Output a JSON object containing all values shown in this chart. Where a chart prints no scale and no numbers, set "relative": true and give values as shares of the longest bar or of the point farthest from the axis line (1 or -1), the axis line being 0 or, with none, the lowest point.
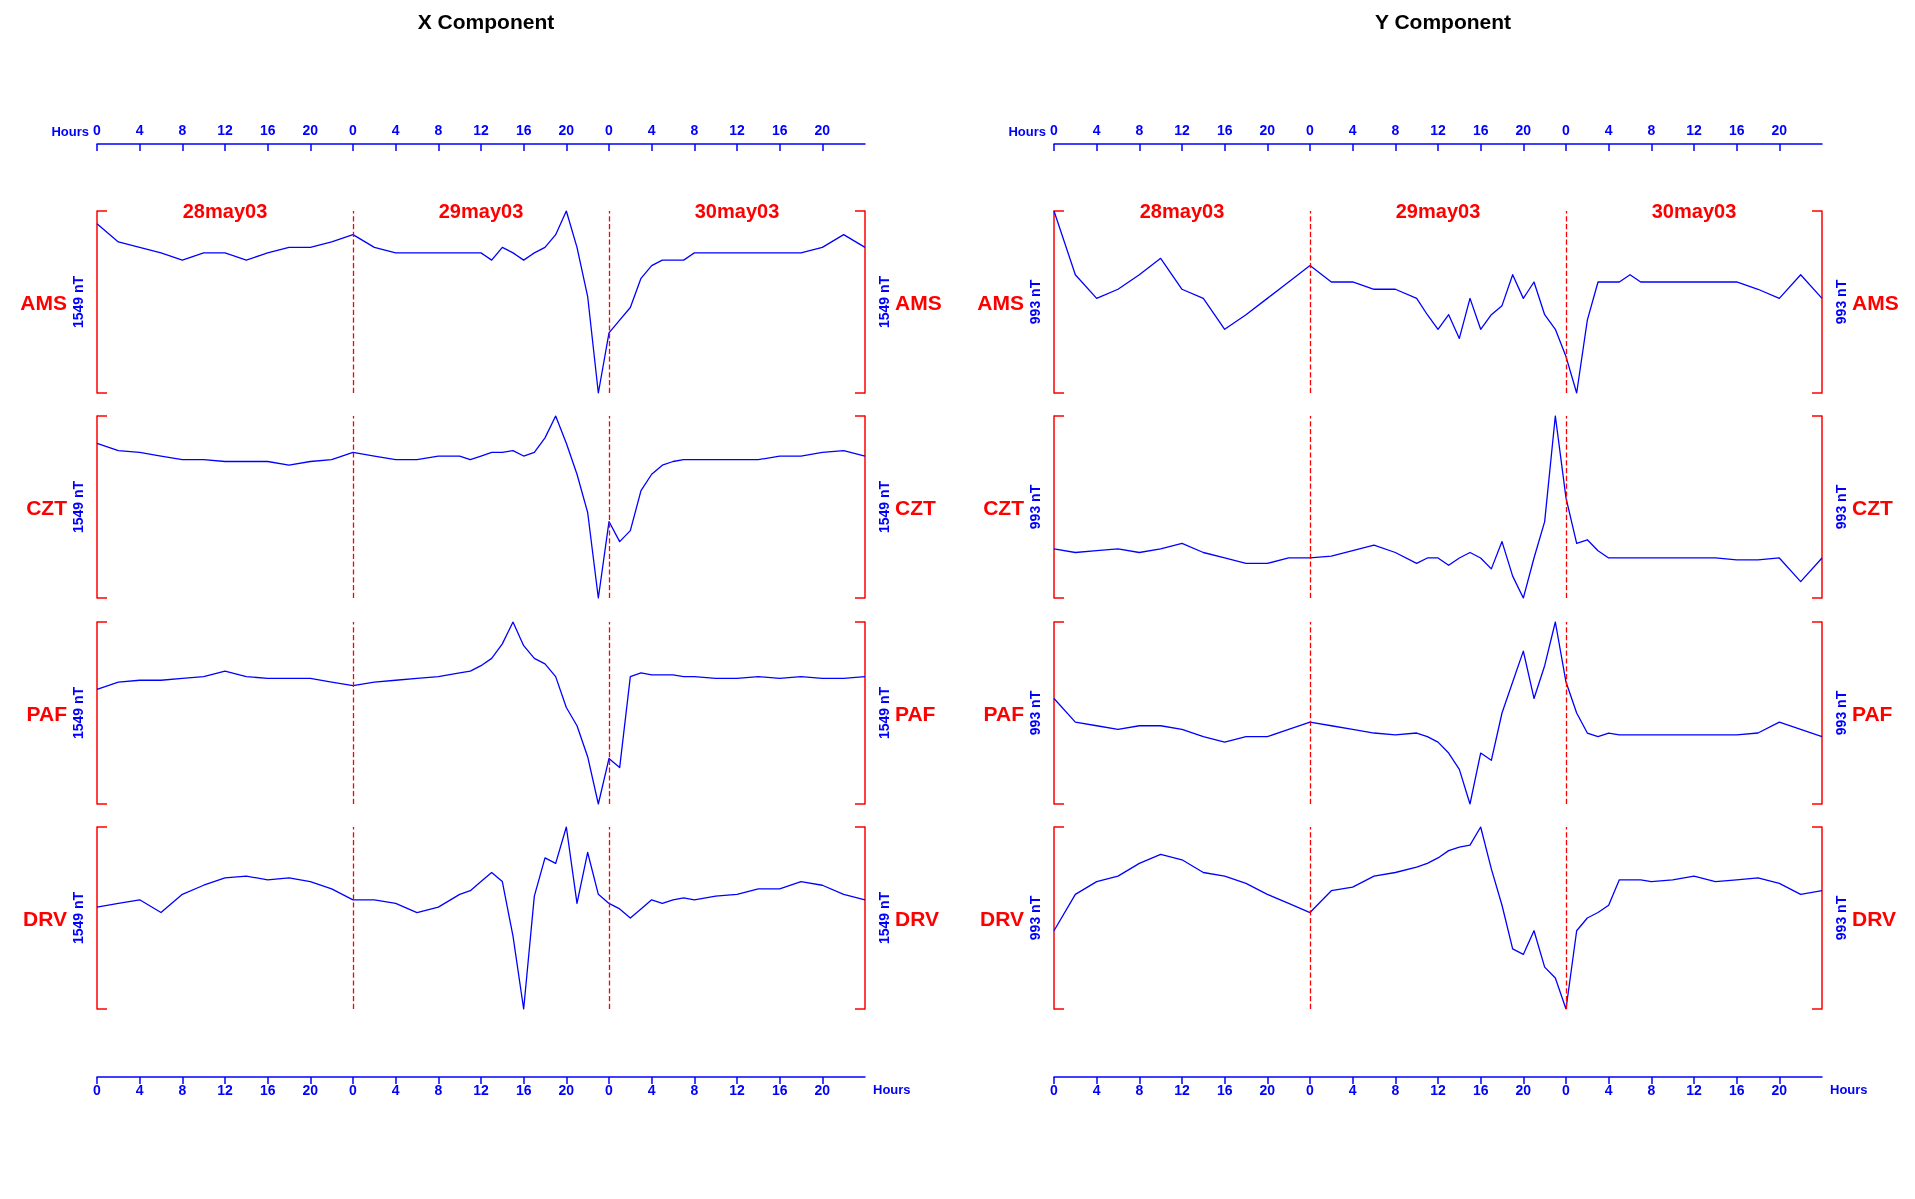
{
  "chart_data": [
    {
      "type": "line",
      "relative": true,
      "title": "X Component",
      "annotations": [
        "28may03",
        "29may03",
        "30may03"
      ],
      "xlim": [
        "--05-28T00:00",
        "--05-31T00:00"
      ],
      "x2lim": [
        "--05-28T00:00",
        "--05-31T00:00"
      ],
      "x2label": "Hours",
      "x2ticks": [
        {
          "value": "--05-28T00:00",
          "label": "0"
        },
        {
          "value": "--05-28T04:00",
          "label": "4"
        },
        {
          "value": "--05-28T08:00",
          "label": "8"
        },
        {
          "value": "--05-28T12:00",
          "label": "12"
        },
        {
          "value": "--05-28T16:00",
          "label": "16"
        },
        {
          "value": "--05-28T20:00",
          "label": "20"
        },
        {
          "value": "--05-29T00:00",
          "label": "0"
        },
        {
          "value": "--05-29T04:00",
          "label": "4"
        },
        {
          "value": "--05-29T08:00",
          "label": "8"
        },
        {
          "value": "--05-29T12:00",
          "label": "12"
        },
        {
          "value": "--05-29T16:00",
          "label": "16"
        },
        {
          "value": "--05-29T20:00",
          "label": "20"
        },
        {
          "value": "--05-30T00:00",
          "label": "0"
        },
        {
          "value": "--05-30T04:00",
          "label": "4"
        },
        {
          "value": "--05-30T08:00",
          "label": "8"
        },
        {
          "value": "--05-30T12:00",
          "label": "12"
        },
        {
          "value": "--05-30T16:00",
          "label": "16"
        },
        {
          "value": "--05-30T20:00",
          "label": "20"
        }
      ],
      "tick_labels": "x",
      "ylabel": "1549 nT",
      "y2label": "1549 nT",
      "ref_lines": [
        {
          "axis": "x",
          "value": "--05-29T00:00",
          "color": "#ff0000",
          "line_style": "dashed"
        },
        {
          "axis": "x",
          "value": "--05-30T00:00",
          "color": "#ff0000",
          "line_style": "dashed"
        }
      ],
      "x": [
        "--05-28T00:00",
        "--05-28T02:00",
        "--05-28T04:00",
        "--05-28T06:00",
        "--05-28T08:00",
        "--05-28T10:00",
        "--05-28T12:00",
        "--05-28T14:00",
        "--05-28T16:00",
        "--05-28T18:00",
        "--05-28T20:00",
        "--05-28T22:00",
        "--05-29T00:00",
        "--05-29T02:00",
        "--05-29T04:00",
        "--05-29T06:00",
        "--05-29T08:00",
        "--05-29T10:00",
        "--05-29T11:00",
        "--05-29T12:00",
        "--05-29T13:00",
        "--05-29T14:00",
        "--05-29T15:00",
        "--05-29T16:00",
        "--05-29T17:00",
        "--05-29T18:00",
        "--05-29T19:00",
        "--05-29T20:00",
        "--05-29T21:00",
        "--05-29T22:00",
        "--05-29T23:00",
        "--05-30T00:00",
        "--05-30T01:00",
        "--05-30T02:00",
        "--05-30T03:00",
        "--05-30T04:00",
        "--05-30T05:00",
        "--05-30T06:00",
        "--05-30T07:00",
        "--05-30T08:00",
        "--05-30T10:00",
        "--05-30T12:00",
        "--05-30T14:00",
        "--05-30T16:00",
        "--05-30T18:00",
        "--05-30T20:00",
        "--05-30T22:00",
        "--05-31T00:00"
      ],
      "series": [
        {
          "name": "AMS",
          "color": "#0000ff",
          "values": [
            0.93,
            0.83,
            0.8,
            0.77,
            0.73,
            0.77,
            0.77,
            0.73,
            0.77,
            0.8,
            0.8,
            0.83,
            0.87,
            0.8,
            0.77,
            0.77,
            0.77,
            0.77,
            0.77,
            0.77,
            0.73,
            0.8,
            0.77,
            0.73,
            0.77,
            0.8,
            0.87,
            1,
            0.8,
            0.53,
            0,
            0.33,
            0.4,
            0.47,
            0.63,
            0.7,
            0.73,
            0.73,
            0.73,
            0.77,
            0.77,
            0.77,
            0.77,
            0.77,
            0.77,
            0.8,
            0.87,
            0.8
          ]
        }
      ]
    },
    {
      "type": "line",
      "relative": true,
      "xlim": [
        "--05-28T00:00",
        "--05-31T00:00"
      ],
      "tick_labels": false,
      "ylabel": "1549 nT",
      "y2label": "1549 nT",
      "ref_lines": [
        {
          "axis": "x",
          "value": "--05-29T00:00",
          "color": "#ff0000",
          "line_style": "dashed"
        },
        {
          "axis": "x",
          "value": "--05-30T00:00",
          "color": "#ff0000",
          "line_style": "dashed"
        }
      ],
      "x": [
        "--05-28T00:00",
        "--05-28T02:00",
        "--05-28T04:00",
        "--05-28T06:00",
        "--05-28T08:00",
        "--05-28T10:00",
        "--05-28T12:00",
        "--05-28T14:00",
        "--05-28T16:00",
        "--05-28T18:00",
        "--05-28T20:00",
        "--05-28T22:00",
        "--05-29T00:00",
        "--05-29T02:00",
        "--05-29T04:00",
        "--05-29T06:00",
        "--05-29T08:00",
        "--05-29T10:00",
        "--05-29T11:00",
        "--05-29T12:00",
        "--05-29T13:00",
        "--05-29T14:00",
        "--05-29T15:00",
        "--05-29T16:00",
        "--05-29T17:00",
        "--05-29T18:00",
        "--05-29T19:00",
        "--05-29T20:00",
        "--05-29T21:00",
        "--05-29T22:00",
        "--05-29T23:00",
        "--05-30T00:00",
        "--05-30T01:00",
        "--05-30T02:00",
        "--05-30T03:00",
        "--05-30T04:00",
        "--05-30T05:00",
        "--05-30T06:00",
        "--05-30T07:00",
        "--05-30T08:00",
        "--05-30T10:00",
        "--05-30T12:00",
        "--05-30T14:00",
        "--05-30T16:00",
        "--05-30T18:00",
        "--05-30T20:00",
        "--05-30T22:00",
        "--05-31T00:00"
      ],
      "series": [
        {
          "name": "CZT",
          "color": "#0000ff",
          "values": [
            0.85,
            0.81,
            0.8,
            0.78,
            0.76,
            0.76,
            0.75,
            0.75,
            0.75,
            0.73,
            0.75,
            0.76,
            0.8,
            0.78,
            0.76,
            0.76,
            0.78,
            0.78,
            0.76,
            0.78,
            0.8,
            0.8,
            0.81,
            0.78,
            0.8,
            0.88,
            1,
            0.85,
            0.68,
            0.47,
            0,
            0.42,
            0.31,
            0.37,
            0.59,
            0.68,
            0.73,
            0.75,
            0.76,
            0.76,
            0.76,
            0.76,
            0.76,
            0.78,
            0.78,
            0.8,
            0.81,
            0.78
          ]
        }
      ]
    },
    {
      "type": "line",
      "relative": true,
      "xlim": [
        "--05-28T00:00",
        "--05-31T00:00"
      ],
      "tick_labels": false,
      "ylabel": "1549 nT",
      "y2label": "1549 nT",
      "ref_lines": [
        {
          "axis": "x",
          "value": "--05-29T00:00",
          "color": "#ff0000",
          "line_style": "dashed"
        },
        {
          "axis": "x",
          "value": "--05-30T00:00",
          "color": "#ff0000",
          "line_style": "dashed"
        }
      ],
      "x": [
        "--05-28T00:00",
        "--05-28T02:00",
        "--05-28T04:00",
        "--05-28T06:00",
        "--05-28T08:00",
        "--05-28T10:00",
        "--05-28T12:00",
        "--05-28T14:00",
        "--05-28T16:00",
        "--05-28T18:00",
        "--05-28T20:00",
        "--05-28T22:00",
        "--05-29T00:00",
        "--05-29T02:00",
        "--05-29T04:00",
        "--05-29T06:00",
        "--05-29T08:00",
        "--05-29T10:00",
        "--05-29T11:00",
        "--05-29T12:00",
        "--05-29T13:00",
        "--05-29T14:00",
        "--05-29T15:00",
        "--05-29T16:00",
        "--05-29T17:00",
        "--05-29T18:00",
        "--05-29T19:00",
        "--05-29T20:00",
        "--05-29T21:00",
        "--05-29T22:00",
        "--05-29T23:00",
        "--05-30T00:00",
        "--05-30T01:00",
        "--05-30T02:00",
        "--05-30T03:00",
        "--05-30T04:00",
        "--05-30T05:00",
        "--05-30T06:00",
        "--05-30T07:00",
        "--05-30T08:00",
        "--05-30T10:00",
        "--05-30T12:00",
        "--05-30T14:00",
        "--05-30T16:00",
        "--05-30T18:00",
        "--05-30T20:00",
        "--05-30T22:00",
        "--05-31T00:00"
      ],
      "series": [
        {
          "name": "PAF",
          "color": "#0000ff",
          "values": [
            0.63,
            0.67,
            0.68,
            0.68,
            0.69,
            0.7,
            0.73,
            0.7,
            0.69,
            0.69,
            0.69,
            0.67,
            0.65,
            0.67,
            0.68,
            0.69,
            0.7,
            0.72,
            0.73,
            0.76,
            0.8,
            0.88,
            1,
            0.87,
            0.8,
            0.77,
            0.7,
            0.53,
            0.43,
            0.26,
            0,
            0.25,
            0.2,
            0.7,
            0.72,
            0.71,
            0.71,
            0.71,
            0.7,
            0.7,
            0.69,
            0.69,
            0.7,
            0.69,
            0.7,
            0.69,
            0.69,
            0.7
          ]
        }
      ]
    },
    {
      "type": "line",
      "relative": true,
      "xlim": [
        "--05-28T00:00",
        "--05-31T00:00"
      ],
      "xlabel": "Hours",
      "xticks": [
        {
          "value": "--05-28T00:00",
          "label": "0"
        },
        {
          "value": "--05-28T04:00",
          "label": "4"
        },
        {
          "value": "--05-28T08:00",
          "label": "8"
        },
        {
          "value": "--05-28T12:00",
          "label": "12"
        },
        {
          "value": "--05-28T16:00",
          "label": "16"
        },
        {
          "value": "--05-28T20:00",
          "label": "20"
        },
        {
          "value": "--05-29T00:00",
          "label": "0"
        },
        {
          "value": "--05-29T04:00",
          "label": "4"
        },
        {
          "value": "--05-29T08:00",
          "label": "8"
        },
        {
          "value": "--05-29T12:00",
          "label": "12"
        },
        {
          "value": "--05-29T16:00",
          "label": "16"
        },
        {
          "value": "--05-29T20:00",
          "label": "20"
        },
        {
          "value": "--05-30T00:00",
          "label": "0"
        },
        {
          "value": "--05-30T04:00",
          "label": "4"
        },
        {
          "value": "--05-30T08:00",
          "label": "8"
        },
        {
          "value": "--05-30T12:00",
          "label": "12"
        },
        {
          "value": "--05-30T16:00",
          "label": "16"
        },
        {
          "value": "--05-30T20:00",
          "label": "20"
        }
      ],
      "tick_labels": "x",
      "ylabel": "1549 nT",
      "y2label": "1549 nT",
      "ref_lines": [
        {
          "axis": "x",
          "value": "--05-29T00:00",
          "color": "#ff0000",
          "line_style": "dashed"
        },
        {
          "axis": "x",
          "value": "--05-30T00:00",
          "color": "#ff0000",
          "line_style": "dashed"
        }
      ],
      "x": [
        "--05-28T00:00",
        "--05-28T02:00",
        "--05-28T04:00",
        "--05-28T06:00",
        "--05-28T08:00",
        "--05-28T10:00",
        "--05-28T12:00",
        "--05-28T14:00",
        "--05-28T16:00",
        "--05-28T18:00",
        "--05-28T20:00",
        "--05-28T22:00",
        "--05-29T00:00",
        "--05-29T02:00",
        "--05-29T04:00",
        "--05-29T06:00",
        "--05-29T08:00",
        "--05-29T10:00",
        "--05-29T11:00",
        "--05-29T12:00",
        "--05-29T13:00",
        "--05-29T14:00",
        "--05-29T15:00",
        "--05-29T16:00",
        "--05-29T17:00",
        "--05-29T18:00",
        "--05-29T19:00",
        "--05-29T20:00",
        "--05-29T21:00",
        "--05-29T22:00",
        "--05-29T23:00",
        "--05-30T00:00",
        "--05-30T01:00",
        "--05-30T02:00",
        "--05-30T03:00",
        "--05-30T04:00",
        "--05-30T05:00",
        "--05-30T06:00",
        "--05-30T07:00",
        "--05-30T08:00",
        "--05-30T10:00",
        "--05-30T12:00",
        "--05-30T14:00",
        "--05-30T16:00",
        "--05-30T18:00",
        "--05-30T20:00",
        "--05-30T22:00",
        "--05-31T00:00"
      ],
      "series": [
        {
          "name": "DRV",
          "color": "#0000ff",
          "values": [
            0.56,
            0.58,
            0.6,
            0.53,
            0.63,
            0.68,
            0.72,
            0.73,
            0.71,
            0.72,
            0.7,
            0.66,
            0.6,
            0.6,
            0.58,
            0.53,
            0.56,
            0.63,
            0.65,
            0.7,
            0.75,
            0.7,
            0.4,
            0,
            0.62,
            0.83,
            0.8,
            1,
            0.58,
            0.86,
            0.63,
            0.58,
            0.55,
            0.5,
            0.55,
            0.6,
            0.58,
            0.6,
            0.61,
            0.6,
            0.62,
            0.63,
            0.66,
            0.66,
            0.7,
            0.68,
            0.63,
            0.6
          ]
        }
      ]
    },
    {
      "type": "line",
      "relative": true,
      "title": "Y Component",
      "annotations": [
        "28may03",
        "29may03",
        "30may03"
      ],
      "xlim": [
        "--05-28T00:00",
        "--05-31T00:00"
      ],
      "x2lim": [
        "--05-28T00:00",
        "--05-31T00:00"
      ],
      "x2label": "Hours",
      "x2ticks": [
        {
          "value": "--05-28T00:00",
          "label": "0"
        },
        {
          "value": "--05-28T04:00",
          "label": "4"
        },
        {
          "value": "--05-28T08:00",
          "label": "8"
        },
        {
          "value": "--05-28T12:00",
          "label": "12"
        },
        {
          "value": "--05-28T16:00",
          "label": "16"
        },
        {
          "value": "--05-28T20:00",
          "label": "20"
        },
        {
          "value": "--05-29T00:00",
          "label": "0"
        },
        {
          "value": "--05-29T04:00",
          "label": "4"
        },
        {
          "value": "--05-29T08:00",
          "label": "8"
        },
        {
          "value": "--05-29T12:00",
          "label": "12"
        },
        {
          "value": "--05-29T16:00",
          "label": "16"
        },
        {
          "value": "--05-29T20:00",
          "label": "20"
        },
        {
          "value": "--05-30T00:00",
          "label": "0"
        },
        {
          "value": "--05-30T04:00",
          "label": "4"
        },
        {
          "value": "--05-30T08:00",
          "label": "8"
        },
        {
          "value": "--05-30T12:00",
          "label": "12"
        },
        {
          "value": "--05-30T16:00",
          "label": "16"
        },
        {
          "value": "--05-30T20:00",
          "label": "20"
        }
      ],
      "tick_labels": "x",
      "ylabel": "993 nT",
      "y2label": "993 nT",
      "ref_lines": [
        {
          "axis": "x",
          "value": "--05-29T00:00",
          "color": "#ff0000",
          "line_style": "dashed"
        },
        {
          "axis": "x",
          "value": "--05-30T00:00",
          "color": "#ff0000",
          "line_style": "dashed"
        }
      ],
      "x": [
        "--05-28T00:00",
        "--05-28T02:00",
        "--05-28T04:00",
        "--05-28T06:00",
        "--05-28T08:00",
        "--05-28T10:00",
        "--05-28T12:00",
        "--05-28T14:00",
        "--05-28T16:00",
        "--05-28T18:00",
        "--05-28T20:00",
        "--05-28T22:00",
        "--05-29T00:00",
        "--05-29T02:00",
        "--05-29T04:00",
        "--05-29T06:00",
        "--05-29T08:00",
        "--05-29T10:00",
        "--05-29T11:00",
        "--05-29T12:00",
        "--05-29T13:00",
        "--05-29T14:00",
        "--05-29T15:00",
        "--05-29T16:00",
        "--05-29T17:00",
        "--05-29T18:00",
        "--05-29T19:00",
        "--05-29T20:00",
        "--05-29T21:00",
        "--05-29T22:00",
        "--05-29T23:00",
        "--05-30T00:00",
        "--05-30T01:00",
        "--05-30T02:00",
        "--05-30T03:00",
        "--05-30T04:00",
        "--05-30T05:00",
        "--05-30T06:00",
        "--05-30T07:00",
        "--05-30T08:00",
        "--05-30T10:00",
        "--05-30T12:00",
        "--05-30T14:00",
        "--05-30T16:00",
        "--05-30T18:00",
        "--05-30T20:00",
        "--05-30T22:00",
        "--05-31T00:00"
      ],
      "series": [
        {
          "name": "AMS",
          "color": "#0000ff",
          "values": [
            1,
            0.65,
            0.52,
            0.57,
            0.65,
            0.74,
            0.57,
            0.52,
            0.35,
            0.43,
            0.52,
            0.61,
            0.7,
            0.61,
            0.61,
            0.57,
            0.57,
            0.52,
            0.43,
            0.35,
            0.43,
            0.3,
            0.52,
            0.35,
            0.43,
            0.48,
            0.65,
            0.52,
            0.61,
            0.43,
            0.35,
            0.2,
            0,
            0.4,
            0.61,
            0.61,
            0.61,
            0.65,
            0.61,
            0.61,
            0.61,
            0.61,
            0.61,
            0.61,
            0.57,
            0.52,
            0.65,
            0.52
          ]
        }
      ]
    },
    {
      "type": "line",
      "relative": true,
      "xlim": [
        "--05-28T00:00",
        "--05-31T00:00"
      ],
      "tick_labels": false,
      "ylabel": "993 nT",
      "y2label": "993 nT",
      "ref_lines": [
        {
          "axis": "x",
          "value": "--05-29T00:00",
          "color": "#ff0000",
          "line_style": "dashed"
        },
        {
          "axis": "x",
          "value": "--05-30T00:00",
          "color": "#ff0000",
          "line_style": "dashed"
        }
      ],
      "x": [
        "--05-28T00:00",
        "--05-28T02:00",
        "--05-28T04:00",
        "--05-28T06:00",
        "--05-28T08:00",
        "--05-28T10:00",
        "--05-28T12:00",
        "--05-28T14:00",
        "--05-28T16:00",
        "--05-28T18:00",
        "--05-28T20:00",
        "--05-28T22:00",
        "--05-29T00:00",
        "--05-29T02:00",
        "--05-29T04:00",
        "--05-29T06:00",
        "--05-29T08:00",
        "--05-29T10:00",
        "--05-29T11:00",
        "--05-29T12:00",
        "--05-29T13:00",
        "--05-29T14:00",
        "--05-29T15:00",
        "--05-29T16:00",
        "--05-29T17:00",
        "--05-29T18:00",
        "--05-29T19:00",
        "--05-29T20:00",
        "--05-29T21:00",
        "--05-29T22:00",
        "--05-29T23:00",
        "--05-30T00:00",
        "--05-30T01:00",
        "--05-30T02:00",
        "--05-30T03:00",
        "--05-30T04:00",
        "--05-30T05:00",
        "--05-30T06:00",
        "--05-30T07:00",
        "--05-30T08:00",
        "--05-30T10:00",
        "--05-30T12:00",
        "--05-30T14:00",
        "--05-30T16:00",
        "--05-30T18:00",
        "--05-30T20:00",
        "--05-30T22:00",
        "--05-31T00:00"
      ],
      "series": [
        {
          "name": "CZT",
          "color": "#0000ff",
          "values": [
            0.27,
            0.25,
            0.26,
            0.27,
            0.25,
            0.27,
            0.3,
            0.25,
            0.22,
            0.19,
            0.19,
            0.22,
            0.22,
            0.23,
            0.26,
            0.29,
            0.25,
            0.19,
            0.22,
            0.22,
            0.18,
            0.22,
            0.25,
            0.22,
            0.16,
            0.31,
            0.12,
            0,
            0.22,
            0.42,
            1,
            0.55,
            0.3,
            0.32,
            0.26,
            0.22,
            0.22,
            0.22,
            0.22,
            0.22,
            0.22,
            0.22,
            0.22,
            0.21,
            0.21,
            0.22,
            0.09,
            0.22
          ]
        }
      ]
    },
    {
      "type": "line",
      "relative": true,
      "xlim": [
        "--05-28T00:00",
        "--05-31T00:00"
      ],
      "tick_labels": false,
      "ylabel": "993 nT",
      "y2label": "993 nT",
      "ref_lines": [
        {
          "axis": "x",
          "value": "--05-29T00:00",
          "color": "#ff0000",
          "line_style": "dashed"
        },
        {
          "axis": "x",
          "value": "--05-30T00:00",
          "color": "#ff0000",
          "line_style": "dashed"
        }
      ],
      "x": [
        "--05-28T00:00",
        "--05-28T02:00",
        "--05-28T04:00",
        "--05-28T06:00",
        "--05-28T08:00",
        "--05-28T10:00",
        "--05-28T12:00",
        "--05-28T14:00",
        "--05-28T16:00",
        "--05-28T18:00",
        "--05-28T20:00",
        "--05-28T22:00",
        "--05-29T00:00",
        "--05-29T02:00",
        "--05-29T04:00",
        "--05-29T06:00",
        "--05-29T08:00",
        "--05-29T10:00",
        "--05-29T11:00",
        "--05-29T12:00",
        "--05-29T13:00",
        "--05-29T14:00",
        "--05-29T15:00",
        "--05-29T16:00",
        "--05-29T17:00",
        "--05-29T18:00",
        "--05-29T19:00",
        "--05-29T20:00",
        "--05-29T21:00",
        "--05-29T22:00",
        "--05-29T23:00",
        "--05-30T00:00",
        "--05-30T01:00",
        "--05-30T02:00",
        "--05-30T03:00",
        "--05-30T04:00",
        "--05-30T05:00",
        "--05-30T06:00",
        "--05-30T07:00",
        "--05-30T08:00",
        "--05-30T10:00",
        "--05-30T12:00",
        "--05-30T14:00",
        "--05-30T16:00",
        "--05-30T18:00",
        "--05-30T20:00",
        "--05-30T22:00",
        "--05-31T00:00"
      ],
      "series": [
        {
          "name": "PAF",
          "color": "#0000ff",
          "values": [
            0.58,
            0.45,
            0.43,
            0.41,
            0.43,
            0.43,
            0.41,
            0.37,
            0.34,
            0.37,
            0.37,
            0.41,
            0.45,
            0.43,
            0.41,
            0.39,
            0.38,
            0.39,
            0.37,
            0.34,
            0.28,
            0.19,
            0,
            0.28,
            0.24,
            0.5,
            0.67,
            0.84,
            0.58,
            0.76,
            1,
            0.67,
            0.5,
            0.39,
            0.37,
            0.39,
            0.38,
            0.38,
            0.38,
            0.38,
            0.38,
            0.38,
            0.38,
            0.38,
            0.39,
            0.45,
            0.41,
            0.37
          ]
        }
      ]
    },
    {
      "type": "line",
      "relative": true,
      "xlim": [
        "--05-28T00:00",
        "--05-31T00:00"
      ],
      "xlabel": "Hours",
      "xticks": [
        {
          "value": "--05-28T00:00",
          "label": "0"
        },
        {
          "value": "--05-28T04:00",
          "label": "4"
        },
        {
          "value": "--05-28T08:00",
          "label": "8"
        },
        {
          "value": "--05-28T12:00",
          "label": "12"
        },
        {
          "value": "--05-28T16:00",
          "label": "16"
        },
        {
          "value": "--05-28T20:00",
          "label": "20"
        },
        {
          "value": "--05-29T00:00",
          "label": "0"
        },
        {
          "value": "--05-29T04:00",
          "label": "4"
        },
        {
          "value": "--05-29T08:00",
          "label": "8"
        },
        {
          "value": "--05-29T12:00",
          "label": "12"
        },
        {
          "value": "--05-29T16:00",
          "label": "16"
        },
        {
          "value": "--05-29T20:00",
          "label": "20"
        },
        {
          "value": "--05-30T00:00",
          "label": "0"
        },
        {
          "value": "--05-30T04:00",
          "label": "4"
        },
        {
          "value": "--05-30T08:00",
          "label": "8"
        },
        {
          "value": "--05-30T12:00",
          "label": "12"
        },
        {
          "value": "--05-30T16:00",
          "label": "16"
        },
        {
          "value": "--05-30T20:00",
          "label": "20"
        }
      ],
      "tick_labels": "x",
      "ylabel": "993 nT",
      "y2label": "993 nT",
      "ref_lines": [
        {
          "axis": "x",
          "value": "--05-29T00:00",
          "color": "#ff0000",
          "line_style": "dashed"
        },
        {
          "axis": "x",
          "value": "--05-30T00:00",
          "color": "#ff0000",
          "line_style": "dashed"
        }
      ],
      "x": [
        "--05-28T00:00",
        "--05-28T02:00",
        "--05-28T04:00",
        "--05-28T06:00",
        "--05-28T08:00",
        "--05-28T10:00",
        "--05-28T12:00",
        "--05-28T14:00",
        "--05-28T16:00",
        "--05-28T18:00",
        "--05-28T20:00",
        "--05-28T22:00",
        "--05-29T00:00",
        "--05-29T02:00",
        "--05-29T04:00",
        "--05-29T06:00",
        "--05-29T08:00",
        "--05-29T10:00",
        "--05-29T11:00",
        "--05-29T12:00",
        "--05-29T13:00",
        "--05-29T14:00",
        "--05-29T15:00",
        "--05-29T16:00",
        "--05-29T17:00",
        "--05-29T18:00",
        "--05-29T19:00",
        "--05-29T20:00",
        "--05-29T21:00",
        "--05-29T22:00",
        "--05-29T23:00",
        "--05-30T00:00",
        "--05-30T01:00",
        "--05-30T02:00",
        "--05-30T03:00",
        "--05-30T04:00",
        "--05-30T05:00",
        "--05-30T06:00",
        "--05-30T07:00",
        "--05-30T08:00",
        "--05-30T10:00",
        "--05-30T12:00",
        "--05-30T14:00",
        "--05-30T16:00",
        "--05-30T18:00",
        "--05-30T20:00",
        "--05-30T22:00",
        "--05-31T00:00"
      ],
      "series": [
        {
          "name": "DRV",
          "color": "#0000ff",
          "values": [
            0.43,
            0.63,
            0.7,
            0.73,
            0.8,
            0.85,
            0.82,
            0.75,
            0.73,
            0.69,
            0.63,
            0.58,
            0.53,
            0.65,
            0.67,
            0.73,
            0.75,
            0.78,
            0.8,
            0.83,
            0.87,
            0.89,
            0.9,
            1,
            0.77,
            0.57,
            0.33,
            0.3,
            0.43,
            0.23,
            0.17,
            0,
            0.43,
            0.5,
            0.53,
            0.57,
            0.71,
            0.71,
            0.71,
            0.7,
            0.71,
            0.73,
            0.7,
            0.71,
            0.72,
            0.69,
            0.63,
            0.65
          ]
        }
      ]
    }
  ]
}
